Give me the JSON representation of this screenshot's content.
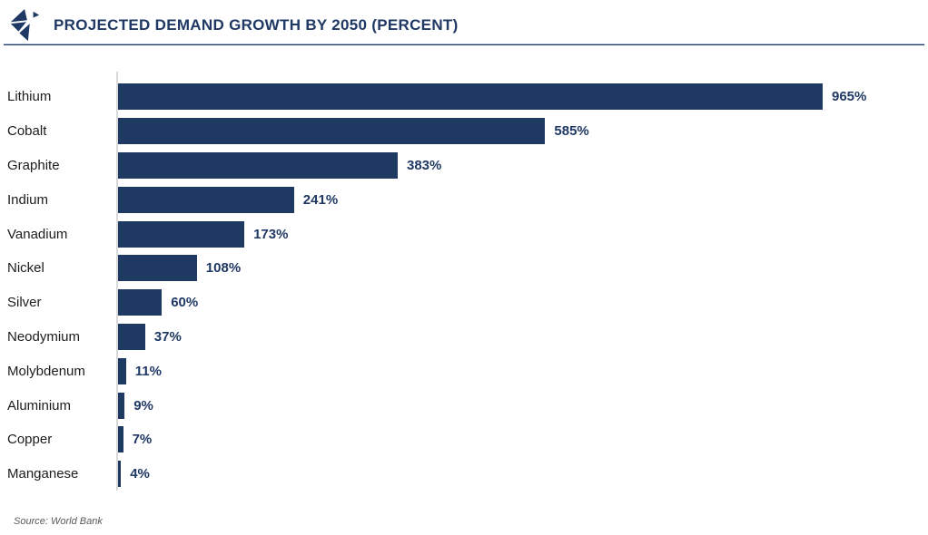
{
  "header": {
    "title": "PROJECTED DEMAND GROWTH BY 2050 (PERCENT)"
  },
  "footer": {
    "source": "Source: World Bank"
  },
  "colors": {
    "bar": "#1e3a63",
    "title": "#1f3864",
    "value_label": "#1f3864",
    "category_label": "#1c1c1c",
    "axis_line": "#d9d9d9",
    "divider": "#1f3864",
    "source_text": "#595959",
    "background": "#ffffff"
  },
  "chart_data": {
    "type": "bar",
    "orientation": "horizontal",
    "title": "PROJECTED DEMAND GROWTH BY 2050 (PERCENT)",
    "categories": [
      "Lithium",
      "Cobalt",
      "Graphite",
      "Indium",
      "Vanadium",
      "Nickel",
      "Silver",
      "Neodymium",
      "Molybdenum",
      "Aluminium",
      "Copper",
      "Manganese"
    ],
    "values": [
      965,
      585,
      383,
      241,
      173,
      108,
      60,
      37,
      11,
      9,
      7,
      4
    ],
    "data_labels": [
      "965%",
      "585%",
      "383%",
      "241%",
      "173%",
      "108%",
      "60%",
      "37%",
      "11%",
      "9%",
      "7%",
      "4%"
    ],
    "value_suffix": "%",
    "xlabel": "",
    "ylabel": "",
    "xlim": [
      0,
      965
    ],
    "grid": false,
    "legend": false,
    "source": "Source: World Bank"
  }
}
